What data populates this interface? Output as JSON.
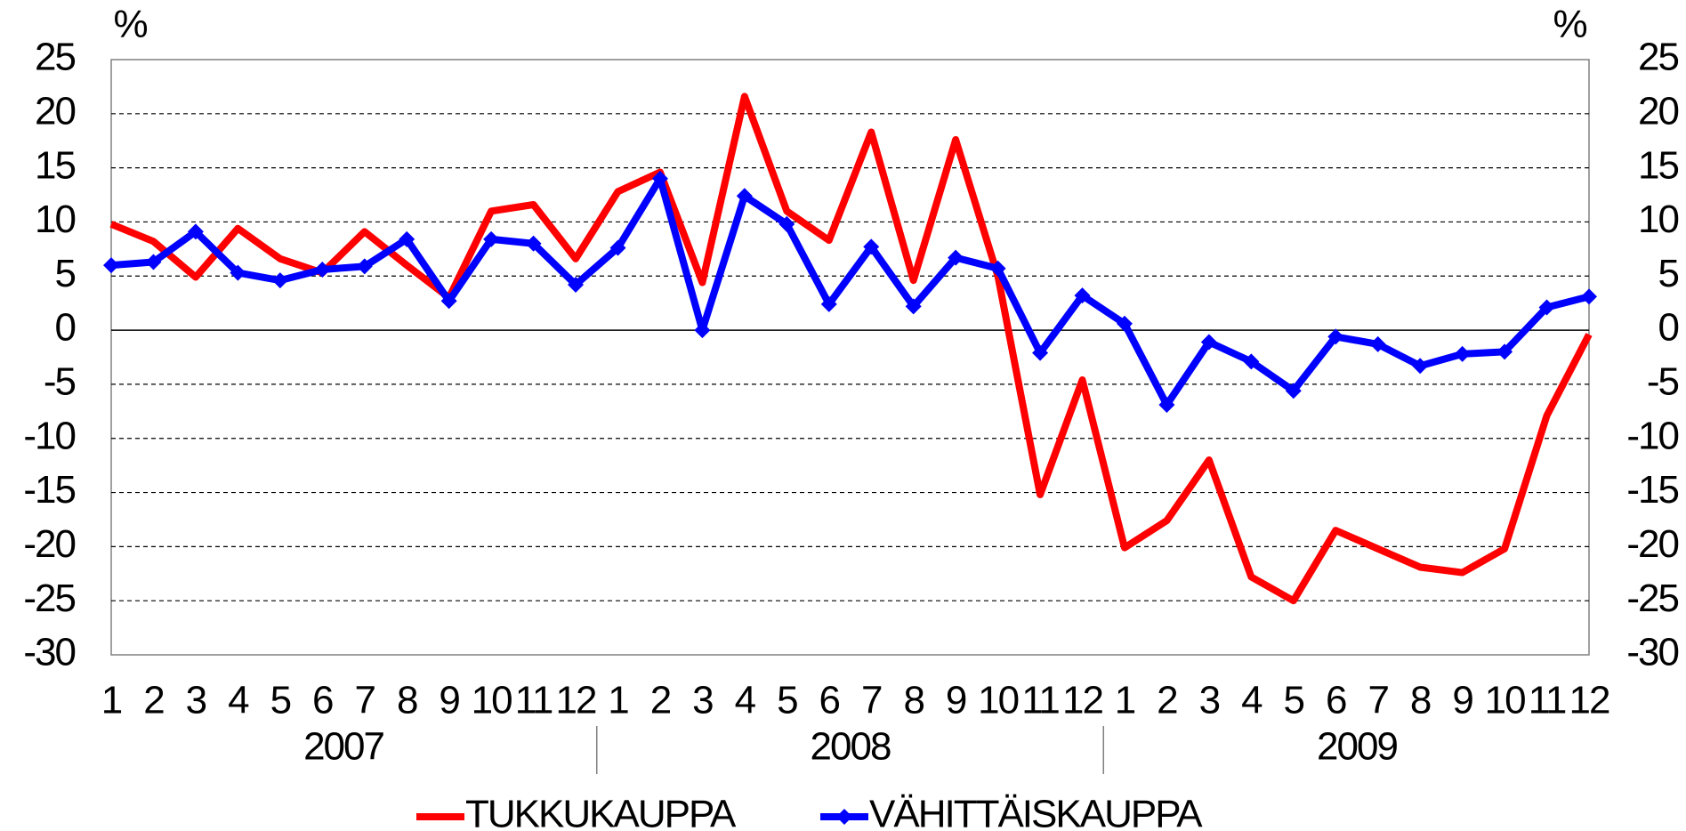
{
  "chart_data": {
    "type": "line",
    "y_unit": "%",
    "y2_unit": "%",
    "categories": [
      "1",
      "2",
      "3",
      "4",
      "5",
      "6",
      "7",
      "8",
      "9",
      "10",
      "11",
      "12",
      "1",
      "2",
      "3",
      "4",
      "5",
      "6",
      "7",
      "8",
      "9",
      "10",
      "11",
      "12",
      "1",
      "2",
      "3",
      "4",
      "5",
      "6",
      "7",
      "8",
      "9",
      "10",
      "11",
      "12"
    ],
    "category_groups": [
      "2007",
      "2008",
      "2009"
    ],
    "ylim": [
      -30,
      25
    ],
    "yticks": [
      -30,
      -25,
      -20,
      -15,
      -10,
      -5,
      0,
      5,
      10,
      15,
      20,
      25
    ],
    "y2lim": [
      -30,
      25
    ],
    "y2ticks": [
      -30,
      -25,
      -20,
      -15,
      -10,
      -5,
      0,
      5,
      10,
      15,
      20,
      25
    ],
    "grid": true,
    "legend": "bottom",
    "series": [
      {
        "name": "TUKKUKAUPPA",
        "color": "#ff0000",
        "marker": "none",
        "values": [
          9.8,
          8.2,
          4.9,
          9.4,
          6.6,
          5.3,
          9.1,
          6.0,
          3.0,
          11.0,
          11.6,
          6.6,
          12.8,
          14.6,
          4.4,
          21.6,
          11.0,
          8.3,
          18.3,
          4.6,
          17.6,
          5.0,
          -15.2,
          -4.6,
          -20.1,
          -17.6,
          -12.0,
          -22.8,
          -25.0,
          -18.5,
          -20.2,
          -21.9,
          -22.4,
          -20.2,
          -7.9,
          -0.4
        ]
      },
      {
        "name": "VÄHITTÄISKAUPPA",
        "color": "#0000ff",
        "marker": "diamond",
        "values": [
          6.0,
          6.3,
          9.1,
          5.3,
          4.6,
          5.6,
          5.9,
          8.4,
          2.7,
          8.4,
          8.0,
          4.2,
          7.6,
          14.0,
          0.0,
          12.4,
          9.8,
          2.4,
          7.7,
          2.2,
          6.7,
          5.7,
          -2.1,
          3.2,
          0.6,
          -6.9,
          -1.1,
          -2.9,
          -5.6,
          -0.6,
          -1.3,
          -3.3,
          -2.2,
          -2.0,
          2.1,
          3.1
        ]
      }
    ]
  }
}
